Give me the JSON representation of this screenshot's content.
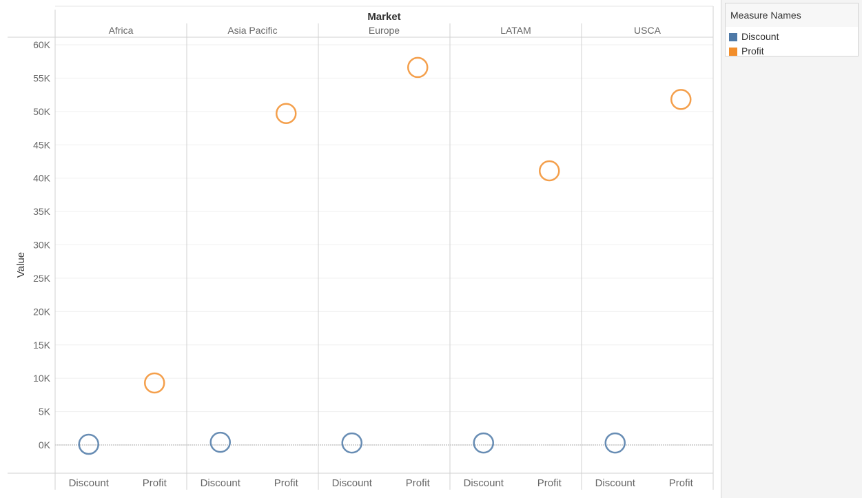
{
  "legend": {
    "title": "Measure Names",
    "items": [
      {
        "label": "Discount",
        "color": "#4e79a7"
      },
      {
        "label": "Profit",
        "color": "#f28e2b"
      }
    ]
  },
  "chart_data": {
    "type": "scatter",
    "column_header": "Market",
    "markets": [
      "Africa",
      "Asia Pacific",
      "Europe",
      "LATAM",
      "USCA"
    ],
    "measures": [
      "Discount",
      "Profit"
    ],
    "ylabel": "Value",
    "ylim": [
      -4000,
      61000
    ],
    "yticks": [
      0,
      5000,
      10000,
      15000,
      20000,
      25000,
      30000,
      35000,
      40000,
      45000,
      50000,
      55000,
      60000
    ],
    "ytick_labels": [
      "0K",
      "5K",
      "10K",
      "15K",
      "20K",
      "25K",
      "30K",
      "35K",
      "40K",
      "45K",
      "50K",
      "55K",
      "60K"
    ],
    "mark": "open-circle",
    "grid": true,
    "series": [
      {
        "name": "Discount",
        "color": "#4e79a7",
        "values": [
          100,
          400,
          300,
          300,
          300
        ]
      },
      {
        "name": "Profit",
        "color": "#f28e2b",
        "values": [
          9300,
          49700,
          56600,
          41100,
          51800
        ]
      }
    ]
  }
}
